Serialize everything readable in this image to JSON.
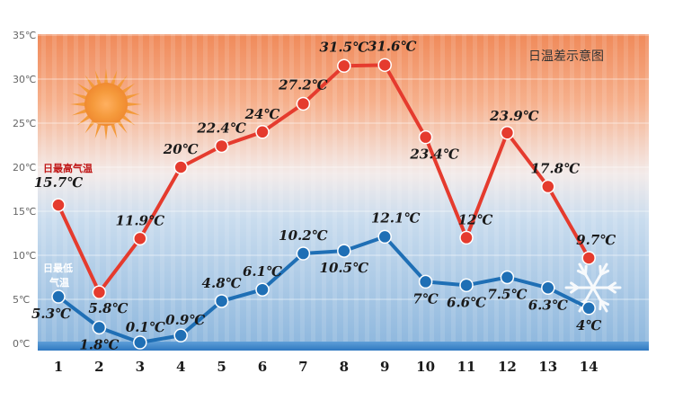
{
  "chart_data": {
    "type": "line",
    "title": "日温差示意图",
    "categories": [
      "1",
      "2",
      "3",
      "4",
      "5",
      "6",
      "7",
      "8",
      "9",
      "10",
      "11",
      "12",
      "13",
      "14"
    ],
    "y_ticks": [
      "0℃",
      "5℃",
      "10℃",
      "15℃",
      "20℃",
      "25℃",
      "30℃",
      "35℃"
    ],
    "ylim": [
      0,
      35
    ],
    "grid": true,
    "series": [
      {
        "name": "日最高气温",
        "color": "#e53b2e",
        "values": [
          15.7,
          5.8,
          11.9,
          20,
          22.4,
          24,
          27.2,
          31.5,
          31.6,
          23.4,
          12,
          23.9,
          17.8,
          9.7
        ],
        "labels": [
          "15.7℃",
          "5.8℃",
          "11.9℃",
          "20℃",
          "22.4℃",
          "24℃",
          "27.2℃",
          "31.5℃",
          "31.6℃",
          "23.4℃",
          "12℃",
          "23.9℃",
          "17.8℃",
          "9.7℃"
        ]
      },
      {
        "name": "日最低气温",
        "color": "#1f6fb5",
        "values": [
          5.3,
          1.8,
          0.1,
          0.9,
          4.8,
          6.1,
          10.2,
          10.5,
          12.1,
          7,
          6.6,
          7.5,
          6.3,
          4
        ],
        "labels": [
          "5.3℃",
          "1.8℃",
          "0.1℃",
          "0.9℃",
          "4.8℃",
          "6.1℃",
          "10.2℃",
          "10.5℃",
          "12.1℃",
          "7℃",
          "6.6℃",
          "7.5℃",
          "6.3℃",
          "4℃"
        ]
      }
    ],
    "series_name_lines": {
      "high": [
        "日最高气温"
      ],
      "low": [
        "日最低",
        "气温"
      ]
    },
    "decorations": [
      "sun-icon",
      "snowflake-icon"
    ]
  }
}
